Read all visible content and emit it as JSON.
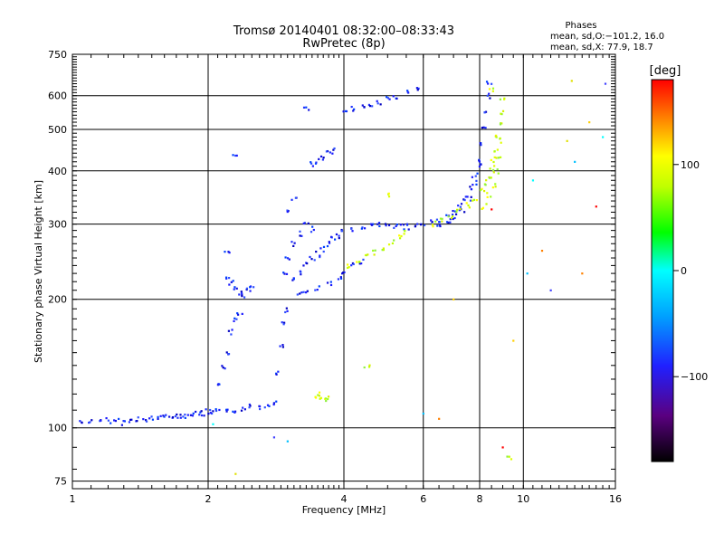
{
  "chart_data": {
    "type": "scatter",
    "title": "Tromsø 20140401 08:32:00–08:33:43",
    "subtitle": "RwPretec (8p)",
    "xlabel": "Frequency [MHz]",
    "ylabel": "Stationary phase Virtual Height [km]",
    "x_scale": "log",
    "y_scale": "log",
    "xlim": [
      1,
      16
    ],
    "ylim": [
      72,
      750
    ],
    "x_ticks": [
      1,
      2,
      4,
      6,
      8,
      10,
      16
    ],
    "y_ticks": [
      75,
      100,
      200,
      300,
      400,
      500,
      600,
      750
    ],
    "grid": true,
    "phase_stats": {
      "title": "Phases",
      "line_o": "mean, sd,O:−101.2, 16.0",
      "line_x": "mean, sd,X:  77.9, 18.7"
    },
    "colorbar": {
      "label": "[deg]",
      "range": [
        -180,
        180
      ],
      "ticks": [
        100,
        0,
        -100
      ]
    },
    "series": [
      {
        "color_hint": "blue",
        "points": [
          [
            1.05,
            103
          ],
          [
            1.1,
            104
          ],
          [
            1.15,
            103
          ],
          [
            1.2,
            104
          ],
          [
            1.25,
            104
          ],
          [
            1.3,
            103
          ],
          [
            1.35,
            104
          ],
          [
            1.4,
            105
          ],
          [
            1.45,
            104
          ],
          [
            1.5,
            105
          ],
          [
            1.55,
            106
          ],
          [
            1.6,
            106
          ],
          [
            1.65,
            107
          ],
          [
            1.7,
            106
          ],
          [
            1.75,
            107
          ],
          [
            1.8,
            107
          ],
          [
            1.85,
            108
          ],
          [
            1.9,
            108
          ],
          [
            1.95,
            108
          ],
          [
            2.0,
            109
          ],
          [
            2.05,
            108
          ],
          [
            2.1,
            109
          ],
          [
            2.2,
            109
          ],
          [
            2.3,
            110
          ],
          [
            2.4,
            111
          ],
          [
            2.5,
            112
          ],
          [
            2.6,
            112
          ],
          [
            2.7,
            113
          ],
          [
            2.8,
            115
          ],
          [
            2.1,
            128
          ],
          [
            2.15,
            138
          ],
          [
            2.2,
            150
          ],
          [
            2.25,
            168
          ],
          [
            2.3,
            178
          ],
          [
            2.35,
            185
          ],
          [
            2.85,
            135
          ],
          [
            2.9,
            155
          ],
          [
            2.95,
            175
          ],
          [
            3.0,
            188
          ],
          [
            2.2,
            222
          ],
          [
            2.25,
            218
          ],
          [
            2.3,
            212
          ],
          [
            2.35,
            208
          ],
          [
            2.4,
            205
          ],
          [
            2.45,
            210
          ],
          [
            2.5,
            215
          ],
          [
            2.95,
            230
          ],
          [
            3.0,
            250
          ],
          [
            3.1,
            270
          ],
          [
            3.2,
            285
          ],
          [
            3.3,
            300
          ],
          [
            3.4,
            292
          ],
          [
            3.1,
            222
          ],
          [
            3.2,
            230
          ],
          [
            3.3,
            240
          ],
          [
            3.4,
            250
          ],
          [
            3.5,
            255
          ],
          [
            3.6,
            262
          ],
          [
            3.7,
            270
          ],
          [
            3.8,
            278
          ],
          [
            3.9,
            282
          ],
          [
            4.0,
            288
          ],
          [
            4.2,
            292
          ],
          [
            4.4,
            295
          ],
          [
            4.6,
            298
          ],
          [
            4.8,
            300
          ],
          [
            5.0,
            300
          ],
          [
            3.2,
            205
          ],
          [
            3.3,
            208
          ],
          [
            3.5,
            212
          ],
          [
            3.7,
            218
          ],
          [
            3.9,
            225
          ],
          [
            4.0,
            232
          ],
          [
            4.2,
            240
          ],
          [
            4.4,
            246
          ],
          [
            5.2,
            296
          ],
          [
            5.4,
            295
          ],
          [
            5.6,
            296
          ],
          [
            5.8,
            297
          ],
          [
            6.0,
            300
          ],
          [
            6.2,
            302
          ],
          [
            6.5,
            306
          ],
          [
            6.8,
            312
          ],
          [
            7.0,
            320
          ],
          [
            7.2,
            330
          ],
          [
            7.4,
            345
          ],
          [
            7.6,
            365
          ],
          [
            7.8,
            390
          ],
          [
            8.0,
            420
          ],
          [
            8.1,
            460
          ],
          [
            8.2,
            500
          ],
          [
            8.3,
            550
          ],
          [
            8.35,
            600
          ],
          [
            8.4,
            640
          ],
          [
            6.5,
            300
          ],
          [
            6.8,
            305
          ],
          [
            7.0,
            312
          ],
          [
            7.3,
            325
          ],
          [
            7.6,
            345
          ],
          [
            7.8,
            375
          ],
          [
            8.0,
            410
          ],
          [
            3.5,
            420
          ],
          [
            3.6,
            430
          ],
          [
            3.7,
            440
          ],
          [
            3.8,
            445
          ],
          [
            3.4,
            415
          ],
          [
            4.0,
            545
          ],
          [
            4.2,
            560
          ],
          [
            4.4,
            568
          ],
          [
            4.6,
            575
          ],
          [
            4.8,
            580
          ],
          [
            5.0,
            590
          ],
          [
            5.2,
            595
          ],
          [
            5.5,
            610
          ],
          [
            5.8,
            620
          ],
          [
            3.1,
            345
          ],
          [
            3.0,
            320
          ],
          [
            2.3,
            440
          ],
          [
            2.2,
            255
          ],
          [
            3.3,
            560
          ]
        ]
      },
      {
        "color_hint": "green-yellow",
        "points": [
          [
            4.1,
            238
          ],
          [
            4.3,
            245
          ],
          [
            4.5,
            252
          ],
          [
            4.7,
            258
          ],
          [
            4.9,
            265
          ],
          [
            5.1,
            272
          ],
          [
            5.3,
            280
          ],
          [
            5.5,
            288
          ],
          [
            6.3,
            300
          ],
          [
            6.6,
            306
          ],
          [
            6.9,
            314
          ],
          [
            7.2,
            322
          ],
          [
            7.5,
            332
          ],
          [
            7.8,
            345
          ],
          [
            8.1,
            360
          ],
          [
            8.3,
            375
          ],
          [
            8.4,
            390
          ],
          [
            8.5,
            405
          ],
          [
            8.6,
            425
          ],
          [
            8.7,
            450
          ],
          [
            8.8,
            480
          ],
          [
            8.85,
            510
          ],
          [
            8.9,
            550
          ],
          [
            8.95,
            590
          ],
          [
            8.2,
            330
          ],
          [
            8.4,
            350
          ],
          [
            8.6,
            370
          ],
          [
            8.7,
            400
          ],
          [
            8.8,
            430
          ],
          [
            8.9,
            470
          ],
          [
            3.5,
            118
          ],
          [
            3.6,
            116
          ],
          [
            3.55,
            120
          ],
          [
            3.65,
            117
          ],
          [
            4.5,
            140
          ],
          [
            9.3,
            85
          ],
          [
            5.0,
            350
          ],
          [
            8.5,
            620
          ]
        ]
      },
      {
        "color_hint": "scattered",
        "points": [
          [
            6.0,
            108
          ],
          [
            6.5,
            105
          ],
          [
            7.0,
            200
          ],
          [
            9.0,
            90
          ],
          [
            10.5,
            380
          ],
          [
            11.5,
            210
          ],
          [
            12.5,
            470
          ],
          [
            13.0,
            420
          ],
          [
            13.5,
            230
          ],
          [
            14.0,
            520
          ],
          [
            14.5,
            330
          ],
          [
            15.0,
            480
          ],
          [
            15.2,
            640
          ],
          [
            12.8,
            650
          ],
          [
            10.2,
            230
          ],
          [
            11.0,
            260
          ],
          [
            9.5,
            160
          ],
          [
            8.5,
            325
          ],
          [
            2.05,
            102
          ],
          [
            2.8,
            95
          ],
          [
            2.3,
            78
          ],
          [
            3.0,
            93
          ]
        ]
      }
    ]
  }
}
